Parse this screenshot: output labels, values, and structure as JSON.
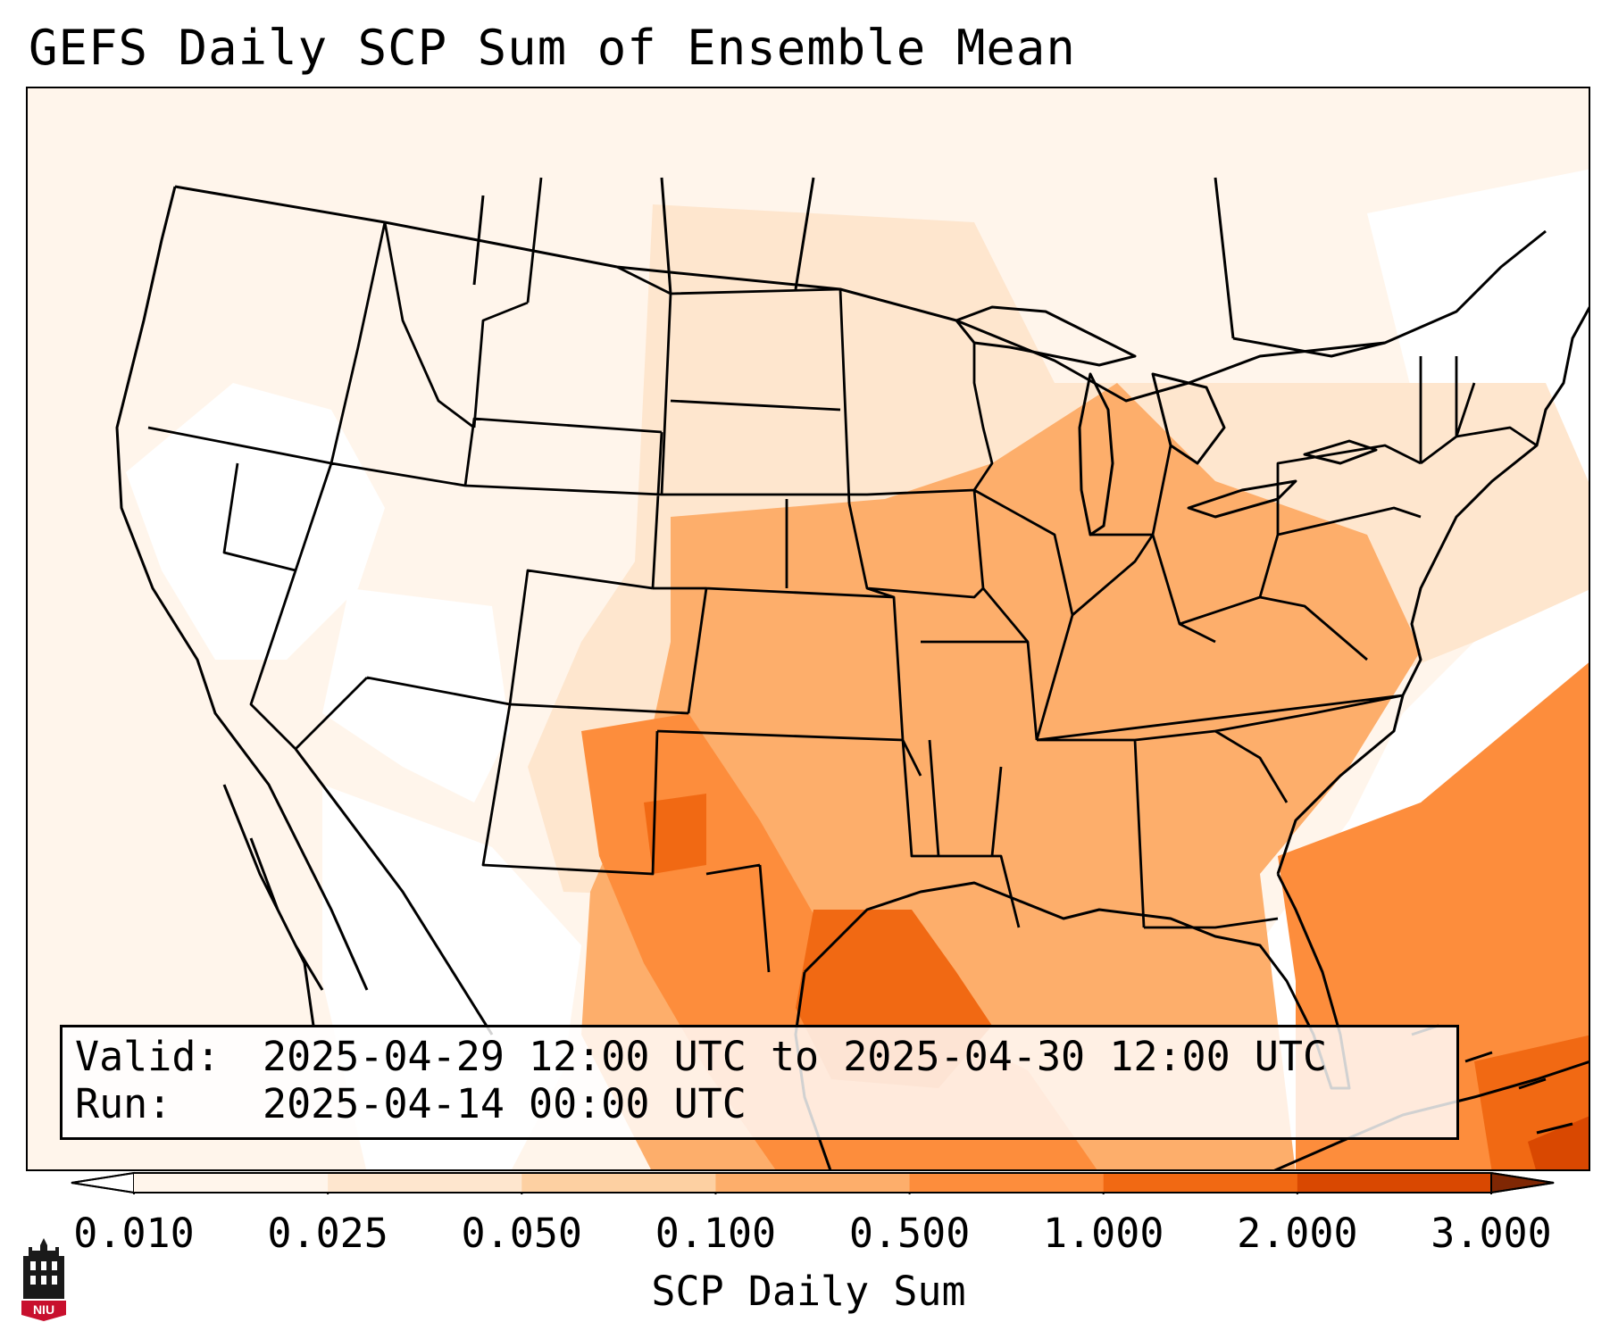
{
  "title": "GEFS Daily SCP Sum of Ensemble Mean",
  "valid": {
    "label": "Valid:",
    "value": "2025-04-29 12:00 UTC to 2025-04-30 12:00 UTC"
  },
  "run": {
    "label": "Run:",
    "value": "2025-04-14 00:00 UTC"
  },
  "colorbar": {
    "title": "SCP Daily Sum",
    "ticks": [
      "0.010",
      "0.025",
      "0.050",
      "0.100",
      "0.500",
      "1.000",
      "2.000",
      "3.000"
    ],
    "colors": [
      "#fff5eb",
      "#fee6ce",
      "#fdd0a2",
      "#fdae6b",
      "#fd8d3c",
      "#f16913",
      "#d94801",
      "#a63603"
    ],
    "under_color": "#ffffff",
    "over_color": "#7f2704"
  },
  "logo": {
    "text": "NIU",
    "icon": "university-tower-icon",
    "color": "#c8102e"
  }
}
